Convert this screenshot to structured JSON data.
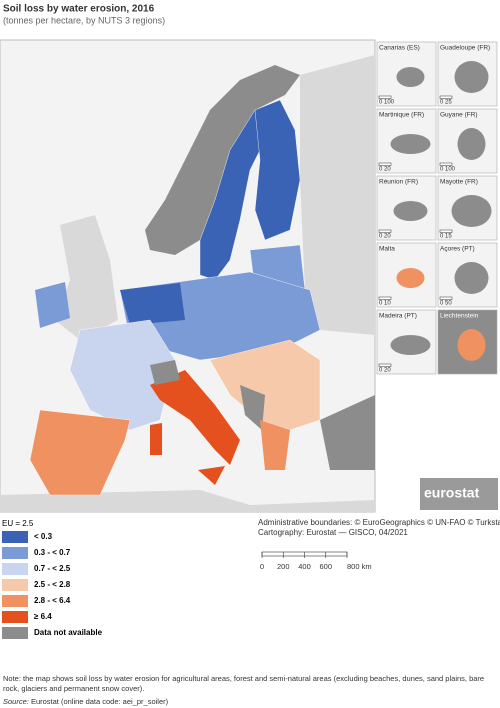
{
  "title": "Soil loss by water erosion, 2016",
  "subtitle": "(tonnes per hectare, by NUTS 3 regions)",
  "insets": [
    {
      "name": "Canarias (ES)",
      "scale": "0  100"
    },
    {
      "name": "Guadeloupe (FR)",
      "scale": "0  25"
    },
    {
      "name": "Martinique (FR)",
      "scale": "0  20"
    },
    {
      "name": "Guyane (FR)",
      "scale": "0  100"
    },
    {
      "name": "Réunion (FR)",
      "scale": "0  20"
    },
    {
      "name": "Mayotte (FR)",
      "scale": "0  15"
    },
    {
      "name": "Malta",
      "scale": "0  10"
    },
    {
      "name": "Açores (PT)",
      "scale": "0  50"
    },
    {
      "name": "Madeira (PT)",
      "scale": "0  20"
    },
    {
      "name": "Liechtenstein"
    }
  ],
  "logo": "eurostat",
  "legend": {
    "eu_average": "EU = 2.5",
    "items": [
      {
        "label": "< 0.3",
        "color": "#3a62b5"
      },
      {
        "label": "0.3 - < 0.7",
        "color": "#7b9bd6"
      },
      {
        "label": "0.7 - < 2.5",
        "color": "#c9d4ee"
      },
      {
        "label": "2.5 - < 2.8",
        "color": "#f6c9ab"
      },
      {
        "label": "2.8 - < 6.4",
        "color": "#ef9160"
      },
      {
        "label": "≥ 6.4",
        "color": "#e4511e"
      },
      {
        "label": "Data not available",
        "color": "#8c8c8c"
      }
    ]
  },
  "credits": [
    "Administrative boundaries: © EuroGeographics © UN-FAO © Turkstat",
    "Cartography: Eurostat — GISCO, 04/2021"
  ],
  "scale_bar": [
    "0",
    "200",
    "400",
    "600",
    "800 km"
  ],
  "note": "Note: the map shows soil loss by water erosion for agricultural areas, forest and semi-natural areas (excluding beaches, dunes, sand plains, bare rock, glaciers and permanent snow cover).",
  "source_label": "Source:",
  "source": "Eurostat (online data code: aei_pr_soiler)"
}
